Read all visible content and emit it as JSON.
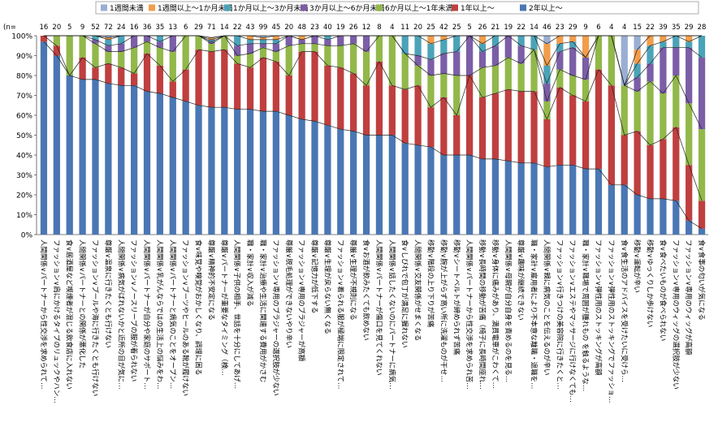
{
  "chart_data": {
    "type": "bar",
    "stacked": true,
    "percent": true,
    "title": "",
    "xlabel": "",
    "ylabel": "",
    "ylim": [
      0,
      100
    ],
    "yticks": [
      "0%",
      "10%",
      "20%",
      "30%",
      "40%",
      "50%",
      "60%",
      "70%",
      "80%",
      "90%",
      "100%"
    ],
    "grid": false,
    "legend_position": "top",
    "n_prefix": "(n=",
    "series": [
      {
        "name": "1週間未満",
        "color": "#9aaed4"
      },
      {
        "name": "1週間以上～1か月未満",
        "color": "#f29d4a"
      },
      {
        "name": "1か月以上～3か月未満",
        "color": "#4ba3b8"
      },
      {
        "name": "3か月以上～6か月未満",
        "color": "#7b5ea7"
      },
      {
        "name": "6か月以上～1年未満",
        "color": "#92b84a"
      },
      {
        "name": "1年以上～",
        "color": "#bf3f3f"
      },
      {
        "name": "2年以上～",
        "color": "#4a77b4"
      }
    ],
    "stack_order_bottom_to_top": [
      "2年以上～",
      "1年以上～",
      "6か月以上～1年未満",
      "3か月以上～6か月未満",
      "1か月以上～3か月未満",
      "1週間以上～1か月未満",
      "1週間未満"
    ],
    "categories": [
      {
        "label": "人間関係∨パートナーから性交渉を求められて…",
        "n": "16",
        "values": [
          0,
          0,
          0,
          0,
          0,
          3,
          97
        ]
      },
      {
        "label": "ファッション∨肩にかけるタイプのリュックやハン…",
        "n": "20",
        "values": [
          0,
          0,
          0,
          0,
          5,
          5,
          90
        ]
      },
      {
        "label": "食∨居酒屋など喫煙者が混じる飲食店に入れない",
        "n": "5",
        "values": [
          0,
          0,
          0,
          0,
          20,
          0,
          80
        ]
      },
      {
        "label": "人間関係∨パートナーとの関係が悪化した",
        "n": "9",
        "values": [
          0,
          0,
          0,
          0,
          11,
          11,
          78
        ]
      },
      {
        "label": "ファッション∨プールや海に行きたくとも行けない",
        "n": "52",
        "values": [
          0,
          0,
          2,
          2,
          12,
          6,
          78
        ]
      },
      {
        "label": "尊厳∨温泉に行きたくとも行けない",
        "n": "72",
        "values": [
          1,
          1,
          3,
          3,
          6,
          10,
          76
        ]
      },
      {
        "label": "人間関係∨病気がばれないかと近所の目が気に…",
        "n": "24",
        "values": [
          0,
          0,
          4,
          4,
          8,
          9,
          75
        ]
      },
      {
        "label": "ファッション∨ノースリーブの服が着られない",
        "n": "16",
        "values": [
          0,
          0,
          0,
          6,
          13,
          6,
          75
        ]
      },
      {
        "label": "人間関係∨パートナーが自分や家庭のサポート…",
        "n": "36",
        "values": [
          0,
          0,
          0,
          3,
          6,
          19,
          72
        ]
      },
      {
        "label": "人間関係∨乳がんならではの生活上の悩みをわ…",
        "n": "35",
        "values": [
          0,
          0,
          3,
          3,
          9,
          14,
          71
        ]
      },
      {
        "label": "人間関係∨パートナーと病気のことをオープン…",
        "n": "13",
        "values": [
          0,
          0,
          0,
          8,
          15,
          8,
          69
        ]
      },
      {
        "label": "ファッション∨ブーツやヒールのある靴が履けない",
        "n": "6",
        "values": [
          0,
          0,
          0,
          0,
          17,
          16,
          67
        ]
      },
      {
        "label": "食∨味覚や嗅覚がおかしくなり、調理に困る",
        "n": "29",
        "values": [
          0,
          0,
          0,
          0,
          7,
          28,
          65
        ]
      },
      {
        "label": "尊厳∨精神的不安定になる",
        "n": "71",
        "values": [
          0,
          1,
          1,
          1,
          4,
          28,
          64
        ]
      },
      {
        "label": "尊厳∨パートナーが重要なタイミング（検…",
        "n": "14",
        "values": [
          0,
          0,
          0,
          0,
          7,
          29,
          64
        ]
      },
      {
        "label": "人間関係∨子供の相手、世話を十分にしてあげ…",
        "n": "22",
        "values": [
          0,
          0,
          5,
          5,
          4,
          23,
          63
        ]
      },
      {
        "label": "職・家計∨収入が減る",
        "n": "43",
        "values": [
          0,
          2,
          2,
          5,
          7,
          21,
          63
        ]
      },
      {
        "label": "職・家計∨治療や生活に関連する費用がかさむ",
        "n": "99",
        "values": [
          1,
          1,
          2,
          2,
          5,
          27,
          62
        ]
      },
      {
        "label": "ファッション∨専用のブラジャーの選択肢が少ない",
        "n": "45",
        "values": [
          0,
          2,
          2,
          4,
          5,
          25,
          62
        ]
      },
      {
        "label": "尊厳∨脱毛処理ができないやり辛い",
        "n": "20",
        "values": [
          0,
          0,
          0,
          5,
          15,
          20,
          60
        ]
      },
      {
        "label": "ファッション∨専用のブラジャーが高額",
        "n": "48",
        "values": [
          0,
          2,
          0,
          2,
          4,
          34,
          58
        ]
      },
      {
        "label": "尊厳∨記憶力が低下する",
        "n": "23",
        "values": [
          0,
          0,
          0,
          4,
          4,
          35,
          57
        ]
      },
      {
        "label": "尊厳∨生理が戻らない無くなる",
        "n": "40",
        "values": [
          0,
          0,
          2,
          3,
          10,
          30,
          55
        ]
      },
      {
        "label": "ファッション∨着られる服が極端に限定されて…",
        "n": "19",
        "values": [
          0,
          0,
          0,
          5,
          11,
          31,
          53
        ]
      },
      {
        "label": "尊厳∨生理が不規則になる",
        "n": "26",
        "values": [
          0,
          0,
          0,
          4,
          15,
          29,
          52
        ]
      },
      {
        "label": "食∨お酒が飲みたくても飲めない",
        "n": "12",
        "values": [
          0,
          0,
          0,
          8,
          17,
          25,
          50
        ]
      },
      {
        "label": "人間関係∨パートナーが傷口を見てくれない",
        "n": "8",
        "values": [
          0,
          0,
          0,
          0,
          13,
          37,
          50
        ]
      },
      {
        "label": "人間関係∨話したくないのにパートナーに病気…",
        "n": "4",
        "values": [
          0,
          0,
          0,
          0,
          25,
          25,
          50
        ]
      },
      {
        "label": "食∨しびれで包丁が満足に握れない",
        "n": "11",
        "values": [
          0,
          0,
          9,
          0,
          18,
          27,
          46
        ]
      },
      {
        "label": "人間関係∨交友関係がせまくなる",
        "n": "20",
        "values": [
          0,
          0,
          10,
          5,
          10,
          30,
          45
        ]
      },
      {
        "label": "移動∨階段の上り下りが苦痛",
        "n": "25",
        "values": [
          0,
          4,
          8,
          8,
          16,
          20,
          44
        ]
      },
      {
        "label": "移動∨腕が上がらず高い所に洗濯ものが干せ…",
        "n": "42",
        "values": [
          0,
          2,
          7,
          10,
          12,
          29,
          40
        ]
      },
      {
        "label": "移動∨シートベルトが締められず苦痛",
        "n": "25",
        "values": [
          0,
          0,
          8,
          12,
          20,
          20,
          40
        ]
      },
      {
        "label": "人間関係∨パートナーから性交渉を求められ苦…",
        "n": "5",
        "values": [
          0,
          0,
          0,
          20,
          0,
          40,
          40
        ]
      },
      {
        "label": "移動∨長時間の移動が苦痛（椅子に長時間座れ…",
        "n": "26",
        "values": [
          0,
          4,
          4,
          8,
          15,
          31,
          38
        ]
      },
      {
        "label": "移動∨身体に痛みがあり、満員電車がこわくて…",
        "n": "21",
        "values": [
          0,
          0,
          5,
          10,
          14,
          33,
          38
        ]
      },
      {
        "label": "人間関係∨母親が自分自身を責めるのを見る…",
        "n": "19",
        "values": [
          0,
          0,
          0,
          11,
          16,
          36,
          37
        ]
      },
      {
        "label": "尊厳∨趣味が継続できない",
        "n": "22",
        "values": [
          0,
          0,
          5,
          9,
          14,
          36,
          36
        ]
      },
      {
        "label": "職・家計∨雇用者により不本意な離職・退職を…",
        "n": "14",
        "values": [
          0,
          0,
          7,
          0,
          21,
          36,
          36
        ]
      },
      {
        "label": "人間関係∨親に病気のことを伝えるのが辛い",
        "n": "46",
        "values": [
          4,
          11,
          9,
          9,
          9,
          24,
          34
        ]
      },
      {
        "label": "ファッション∨行きつけの美容院に行きたくと…",
        "n": "23",
        "values": [
          0,
          4,
          4,
          9,
          9,
          39,
          35
        ]
      },
      {
        "label": "ファッション∨エステやマッサージに行けなくても…",
        "n": "29",
        "values": [
          0,
          3,
          3,
          14,
          10,
          35,
          35
        ]
      },
      {
        "label": "職・家計∨職場で周囲が腫れもの を触るような…",
        "n": "9",
        "values": [
          0,
          11,
          0,
          11,
          11,
          34,
          33
        ]
      },
      {
        "label": "ファッション∨弾性用のストッキングが高額",
        "n": "6",
        "values": [
          0,
          0,
          0,
          0,
          17,
          50,
          33
        ]
      },
      {
        "label": "ファッション∨弾性用のストッキングでファッショ…",
        "n": "4",
        "values": [
          0,
          0,
          0,
          0,
          25,
          50,
          25
        ]
      },
      {
        "label": "食∨食生活のアドバイスを受けたいに受けら…",
        "n": "4",
        "values": [
          25,
          0,
          0,
          0,
          25,
          25,
          25
        ]
      },
      {
        "label": "移動∨運転が辛い",
        "n": "15",
        "values": [
          7,
          7,
          7,
          7,
          20,
          32,
          20
        ]
      },
      {
        "label": "移動∨ゆっくりしか歩けない",
        "n": "22",
        "values": [
          0,
          5,
          9,
          9,
          32,
          27,
          18
        ]
      },
      {
        "label": "食∨食べたいものが食べられない",
        "n": "39",
        "values": [
          0,
          3,
          3,
          23,
          23,
          30,
          18
        ]
      },
      {
        "label": "ファッション∨専用のウィッグの選択肢が少ない",
        "n": "35",
        "values": [
          0,
          0,
          6,
          14,
          26,
          37,
          17
        ]
      },
      {
        "label": "ファッション∨専用のウィッグが高額",
        "n": "29",
        "values": [
          0,
          3,
          3,
          28,
          31,
          28,
          7
        ]
      },
      {
        "label": "食∨食事の匂いが気になる",
        "n": "28",
        "values": [
          0,
          0,
          11,
          36,
          36,
          14,
          3
        ]
      }
    ]
  }
}
